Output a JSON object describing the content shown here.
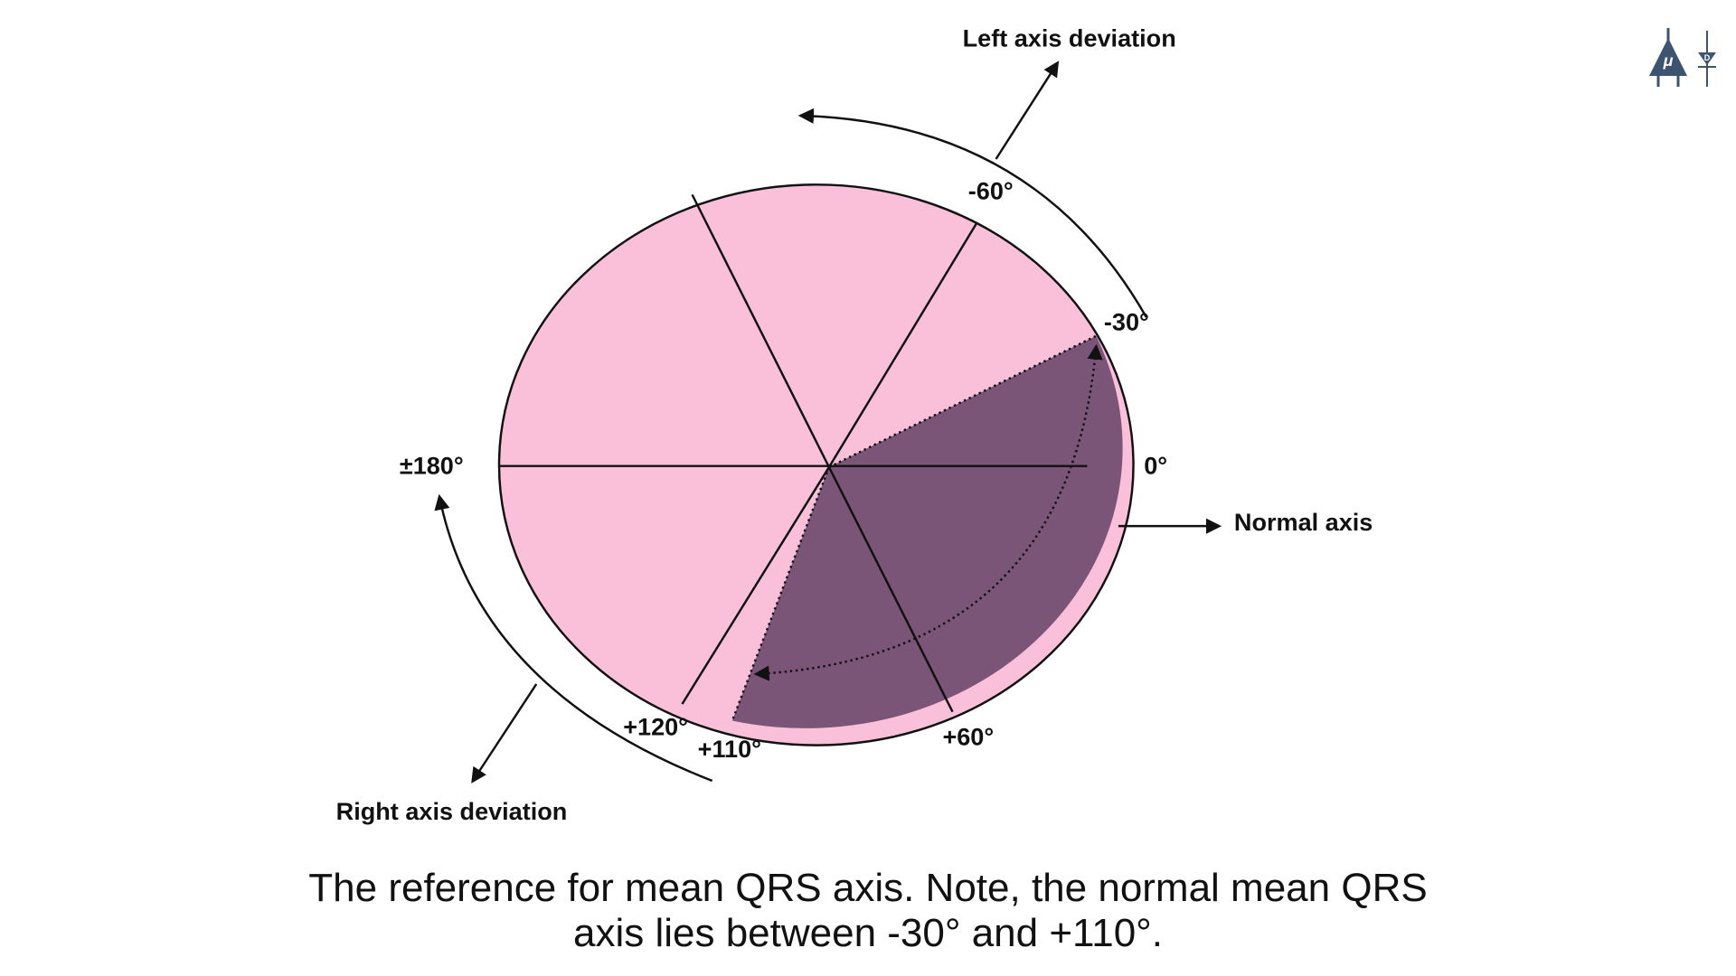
{
  "diagram": {
    "labels": {
      "left_axis_deviation": "Left axis deviation",
      "right_axis_deviation": "Right axis deviation",
      "normal_axis": "Normal axis",
      "deg_minus60": "-60°",
      "deg_minus30": "-30°",
      "deg_0": "0°",
      "deg_plus60": "+60°",
      "deg_plus110": "+110°",
      "deg_plus120": "+120°",
      "deg_180": "±180°"
    },
    "normal_range_degrees": [
      -30,
      110
    ],
    "colors": {
      "sector_fill": "#fac0da",
      "normal_sector_fill": "#7b5578",
      "logo": "#3d5470"
    }
  },
  "caption": {
    "line1": "The reference for mean QRS axis. Note, the normal mean QRS",
    "line2": "axis lies between -30° and +110°."
  },
  "logo": {
    "mu": "μ",
    "d": "D"
  }
}
